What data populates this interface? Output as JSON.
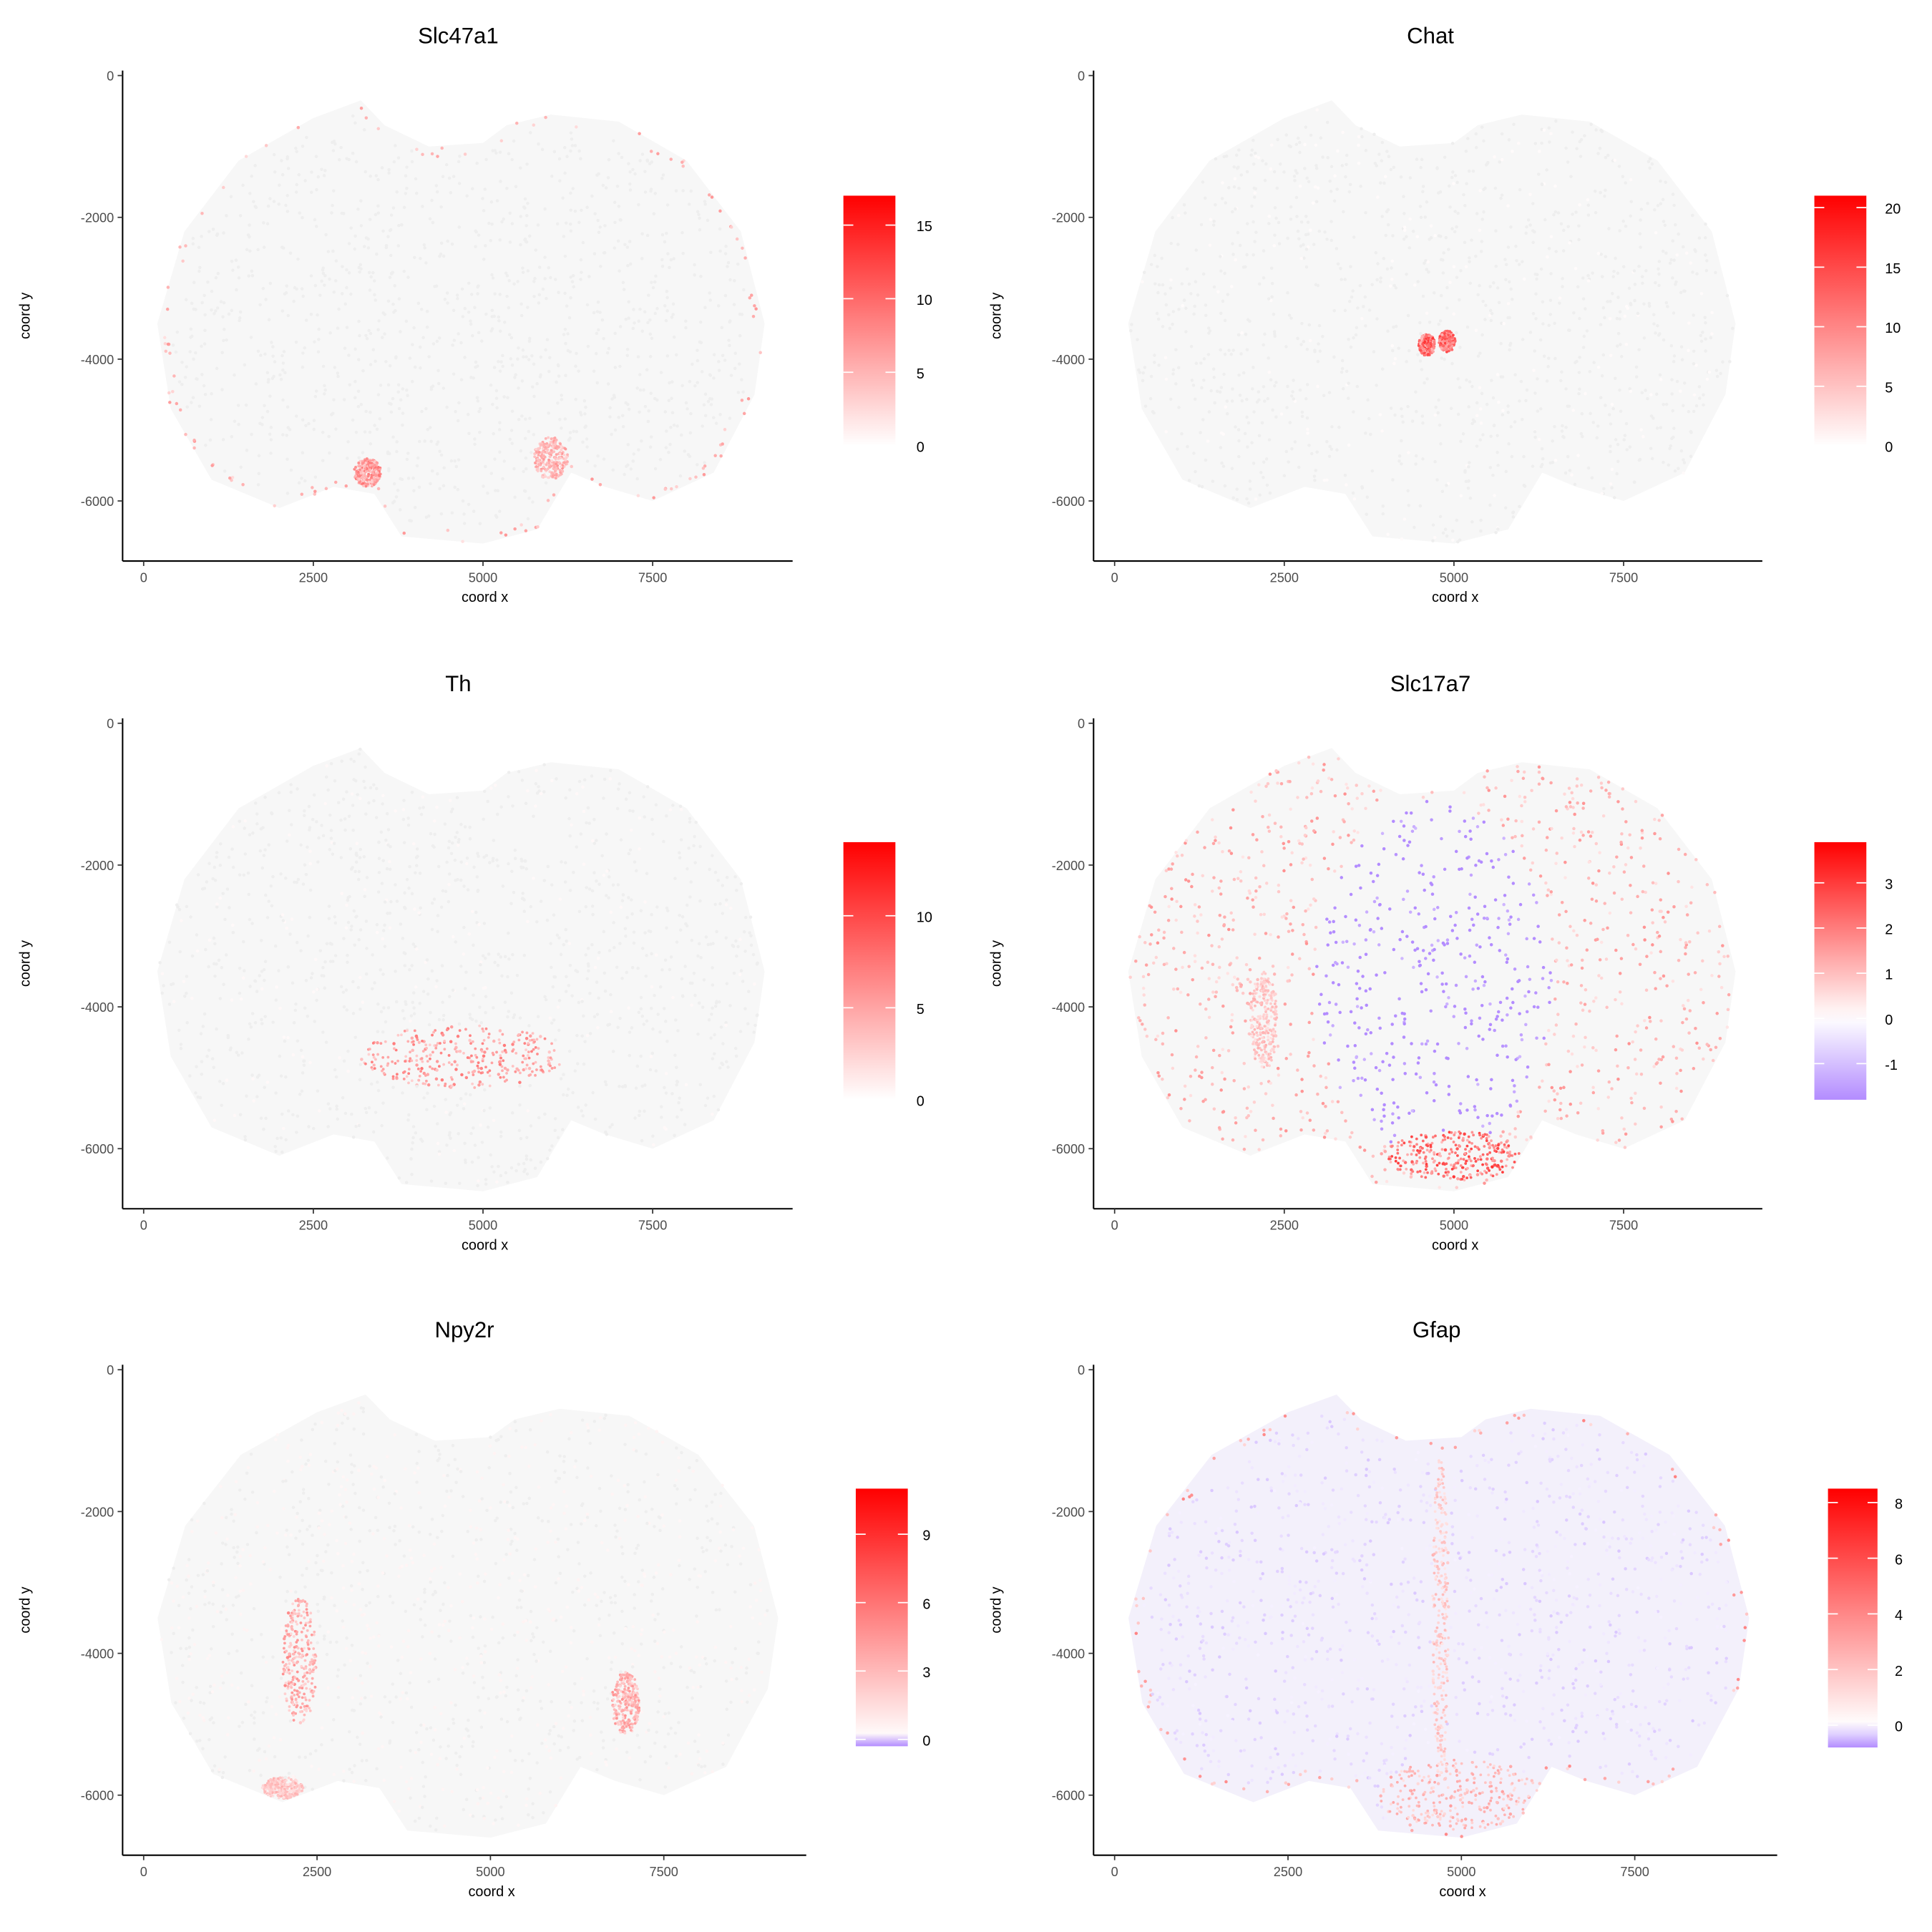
{
  "chart_data": [
    {
      "type": "scatter",
      "title": "Slc47a1",
      "xlabel": "coord x",
      "ylabel": "coord y",
      "xticks": [
        0,
        2500,
        5000,
        7500
      ],
      "yticks": [
        0,
        -2000,
        -4000,
        -6000
      ],
      "xlim": [
        -600,
        9400
      ],
      "ylim": [
        -6900,
        100
      ],
      "legend": {
        "min": 0,
        "max": 17,
        "ticks": [
          0,
          5,
          10,
          15
        ],
        "placement": "right"
      },
      "pattern": {
        "background": 0.2,
        "rim": 5,
        "hotspots": [
          {
            "x": 3300,
            "y": -5600,
            "rx": 200,
            "ry": 200,
            "value": 8
          },
          {
            "x": 6000,
            "y": -5400,
            "rx": 250,
            "ry": 300,
            "value": 6
          }
        ]
      }
    },
    {
      "type": "scatter",
      "title": "Chat",
      "xlabel": "coord x",
      "ylabel": "coord y",
      "xticks": [
        0,
        2500,
        5000,
        7500
      ],
      "yticks": [
        0,
        -2000,
        -4000,
        -6000
      ],
      "xlim": [
        -600,
        9400
      ],
      "ylim": [
        -6900,
        100
      ],
      "legend": {
        "min": 0,
        "max": 21,
        "ticks": [
          0,
          5,
          10,
          15,
          20
        ],
        "placement": "right"
      },
      "pattern": {
        "background": 0.3,
        "rim": 0,
        "hotspots": [
          {
            "x": 4600,
            "y": -3800,
            "rx": 120,
            "ry": 150,
            "value": 14
          },
          {
            "x": 4900,
            "y": -3750,
            "rx": 120,
            "ry": 150,
            "value": 14
          }
        ]
      }
    },
    {
      "type": "scatter",
      "title": "Th",
      "xlabel": "coord x",
      "ylabel": "coord y",
      "xticks": [
        0,
        2500,
        5000,
        7500
      ],
      "yticks": [
        0,
        -2000,
        -4000,
        -6000
      ],
      "xlim": [
        -600,
        9400
      ],
      "ylim": [
        -6900,
        100
      ],
      "legend": {
        "min": 0,
        "max": 14,
        "ticks": [
          0,
          5,
          10
        ],
        "placement": "right"
      },
      "pattern": {
        "background": 0.3,
        "rim": 0,
        "hotspots": [
          {
            "x": 4700,
            "y": -4700,
            "rx": 1500,
            "ry": 450,
            "value": 6
          }
        ]
      }
    },
    {
      "type": "scatter",
      "title": "Slc17a7",
      "xlabel": "coord x",
      "ylabel": "coord y",
      "xticks": [
        0,
        2500,
        5000,
        7500
      ],
      "yticks": [
        0,
        -2000,
        -4000,
        -6000
      ],
      "xlim": [
        -600,
        9400
      ],
      "ylim": [
        -6900,
        100
      ],
      "legend": {
        "min": -1.8,
        "max": 3.9,
        "ticks": [
          -1,
          0,
          1,
          2,
          3
        ],
        "placement": "right"
      },
      "pattern": {
        "background": 1.3,
        "rim": 0,
        "hotspots": [
          {
            "x": 4700,
            "y": -3600,
            "rx": 1750,
            "ry": 2500,
            "value": -2.2
          },
          {
            "x": 5000,
            "y": -6100,
            "rx": 1000,
            "ry": 350,
            "value": 2.5
          },
          {
            "x": 2200,
            "y": -4200,
            "rx": 200,
            "ry": 700,
            "value": 1
          }
        ]
      }
    },
    {
      "type": "scatter",
      "title": "Npy2r",
      "xlabel": "coord x",
      "ylabel": "coord y",
      "xticks": [
        0,
        2500,
        5000,
        7500
      ],
      "yticks": [
        0,
        -2000,
        -4000,
        -6000
      ],
      "xlim": [
        -600,
        9400
      ],
      "ylim": [
        -6900,
        100
      ],
      "legend": {
        "min": -0.3,
        "max": 11,
        "ticks": [
          0,
          3,
          6,
          9
        ],
        "placement": "right"
      },
      "pattern": {
        "background": 0.4,
        "rim": 0,
        "hotspots": [
          {
            "x": 2250,
            "y": -4100,
            "rx": 250,
            "ry": 900,
            "value": 4
          },
          {
            "x": 6950,
            "y": -4700,
            "rx": 200,
            "ry": 450,
            "value": 4
          },
          {
            "x": 2000,
            "y": -5900,
            "rx": 300,
            "ry": 150,
            "value": 3
          }
        ]
      }
    },
    {
      "type": "scatter",
      "title": "Gfap",
      "xlabel": "coord x",
      "ylabel": "coord y",
      "xticks": [
        0,
        2500,
        5000,
        7500
      ],
      "yticks": [
        0,
        -2000,
        -4000,
        -6000
      ],
      "xlim": [
        -600,
        9400
      ],
      "ylim": [
        -6900,
        100
      ],
      "legend": {
        "min": -0.8,
        "max": 8.5,
        "ticks": [
          0,
          2,
          4,
          6,
          8
        ],
        "placement": "right"
      },
      "pattern": {
        "background": -0.3,
        "rim": 3,
        "hotspots": [
          {
            "x": 5000,
            "y": -6000,
            "rx": 1200,
            "ry": 500,
            "value": 2.5
          },
          {
            "x": 4700,
            "y": -3500,
            "rx": 120,
            "ry": 2300,
            "value": 2
          }
        ]
      }
    }
  ],
  "colors": {
    "high": "#ff0000",
    "mid": "#ffffff",
    "low": "#b38cff",
    "zero": "#eeeeee"
  }
}
